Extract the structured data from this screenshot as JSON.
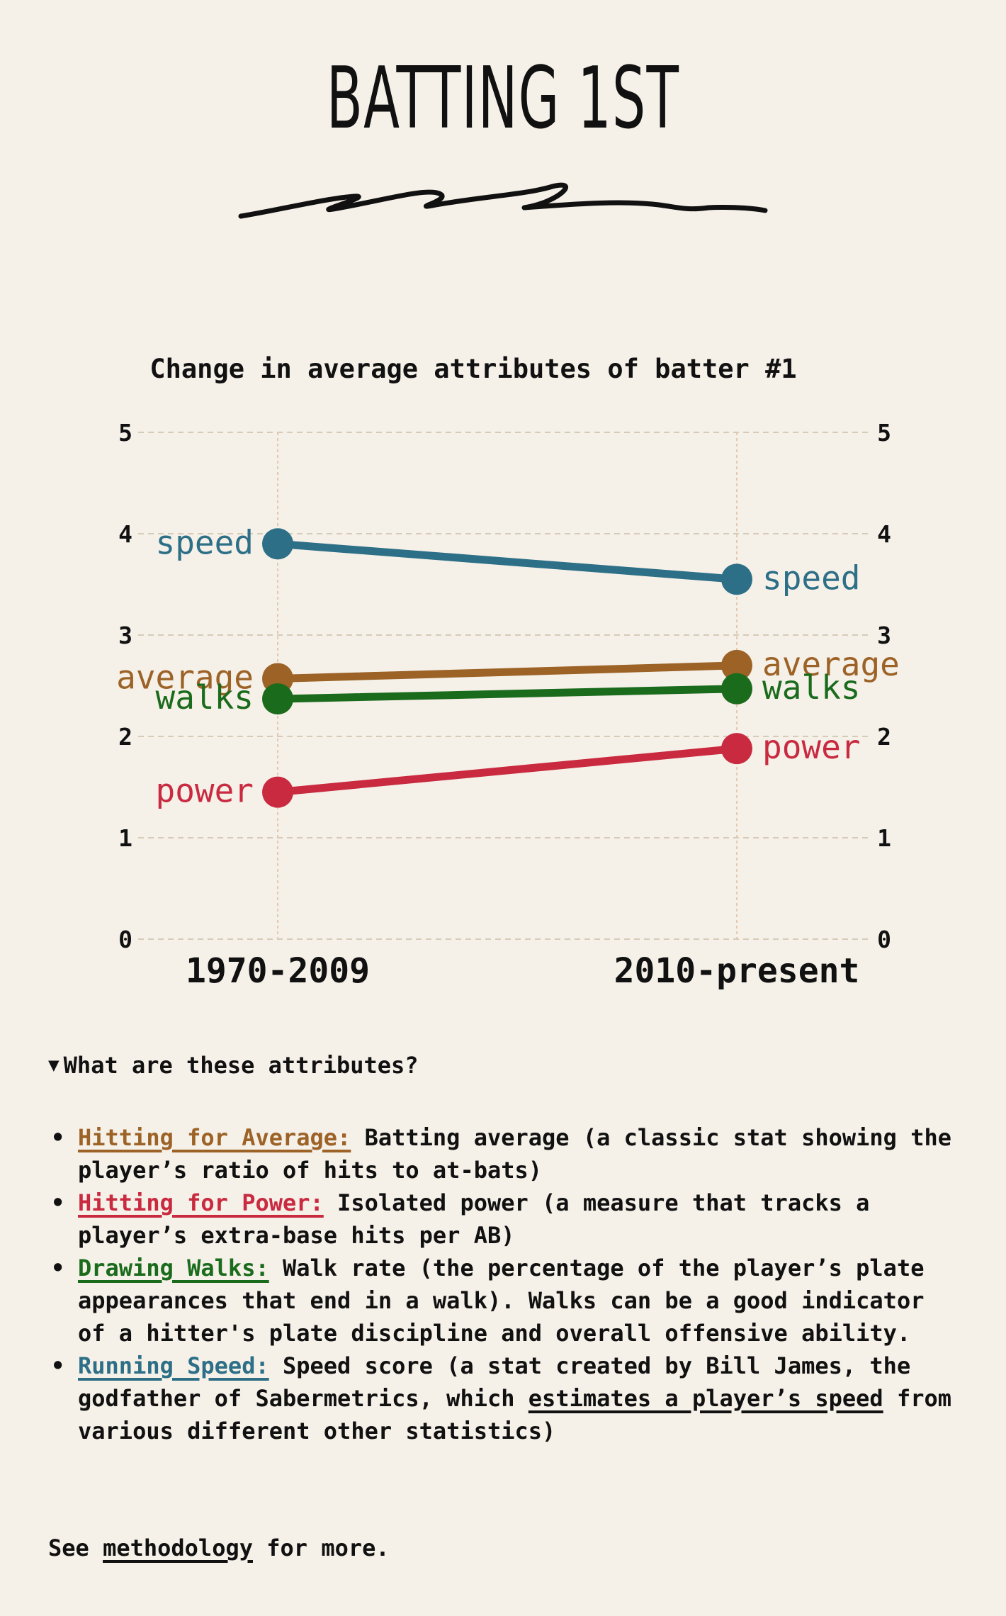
{
  "header": {
    "title": "BATTING 1ST"
  },
  "chart_data": {
    "type": "line",
    "title": "Change in average attributes of batter #1",
    "categories": [
      "1970-2009",
      "2010-present"
    ],
    "ylim": [
      0,
      5
    ],
    "yticks": [
      0,
      1,
      2,
      3,
      4,
      5
    ],
    "grid": true,
    "series": [
      {
        "name": "speed",
        "values": [
          3.9,
          3.55
        ],
        "color": "#2c6f86"
      },
      {
        "name": "average",
        "values": [
          2.57,
          2.7
        ],
        "color": "#9c6226"
      },
      {
        "name": "walks",
        "values": [
          2.37,
          2.47
        ],
        "color": "#1a6b1c"
      },
      {
        "name": "power",
        "values": [
          1.45,
          1.88
        ],
        "color": "#c92a40"
      }
    ]
  },
  "details": {
    "summary": "What are these attributes?",
    "items": [
      {
        "lead": "Hitting for Average:",
        "text": " Batting average (a classic stat showing the player’s ratio of hits to at-bats)"
      },
      {
        "lead": "Hitting for Power:",
        "text": " Isolated power (a measure that tracks a player’s extra-base hits per AB)"
      },
      {
        "lead": "Drawing Walks:",
        "text": " Walk rate (the percentage of the player’s plate appearances that end in a walk). Walks can be a good indicator of a hitter's plate discipline and overall offensive ability."
      },
      {
        "lead": "Running Speed:",
        "text_before": " Speed score (a stat created by Bill James, the godfather of Sabermetrics, which ",
        "link": "estimates a player’s speed",
        "text_after": " from various different other statistics)"
      }
    ]
  },
  "footer": {
    "prefix": "See ",
    "link": "methodology",
    "suffix": " for more."
  }
}
